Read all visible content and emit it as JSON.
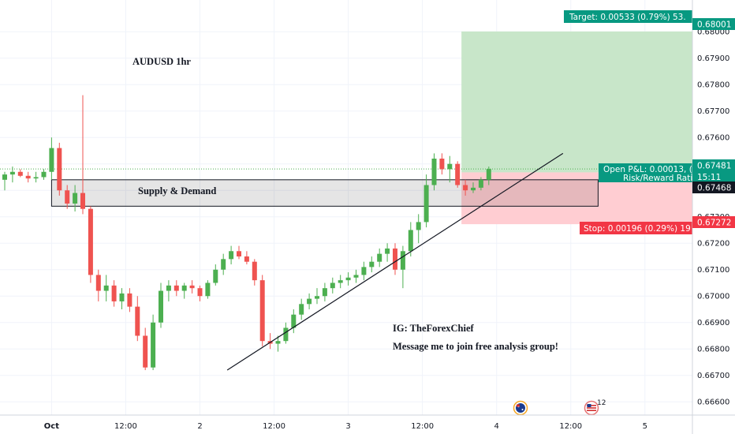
{
  "title": "AUDUSD 1hr",
  "zone_label": "Supply & Demand",
  "annotation": {
    "ig": "IG: TheForexChief",
    "message": "Message me to join free analysis group!"
  },
  "colors": {
    "up": "#26a69a",
    "up_body": "#4caf50",
    "down": "#ef5350",
    "target_zone": "#c8e6c9",
    "stop_zone": "#ffcdd2",
    "target_tag": "#089981",
    "stop_tag": "#f23645"
  },
  "position": {
    "target_label": "Target: 0.00533 (0.79%) 53.",
    "stop_label": "Stop: 0.00196 (0.29%) 19",
    "pnl_label": "Open P&L: 0.00013, (",
    "rr_label": "Risk/Reward Rati",
    "timer": "15:11"
  },
  "price_tags": {
    "target": "0.68001",
    "current": "0.67481",
    "entry": "0.67468",
    "stop": "0.67272"
  },
  "events": [
    {
      "name": "australia-flag-icon",
      "label": ""
    },
    {
      "name": "usa-flag-icon",
      "label": "12"
    }
  ],
  "chart_data": {
    "type": "candlestick",
    "title": "AUDUSD 1hr",
    "y_ticks": [
      "0.68000",
      "0.67900",
      "0.67800",
      "0.67700",
      "0.67600",
      "0.67500",
      "0.67400",
      "0.67300",
      "0.67200",
      "0.67100",
      "0.67000",
      "0.66900",
      "0.66800",
      "0.66700",
      "0.66600"
    ],
    "y_tick_values": [
      0.68,
      0.679,
      0.678,
      0.677,
      0.676,
      0.675,
      0.674,
      0.673,
      0.672,
      0.671,
      0.67,
      0.669,
      0.668,
      0.667,
      0.666
    ],
    "x_ticks": [
      "Oct",
      "12:00",
      "2",
      "12:00",
      "3",
      "12:00",
      "4",
      "12:00",
      "5"
    ],
    "x_tick_index": [
      6,
      15.5,
      25,
      34.5,
      44,
      53.5,
      63,
      72.5,
      82
    ],
    "ylim": [
      0.6655,
      0.6812
    ],
    "candles": [
      [
        0.6744,
        0.6747,
        0.674,
        0.6746
      ],
      [
        0.6746,
        0.6749,
        0.6743,
        0.6747
      ],
      [
        0.6747,
        0.6748,
        0.6745,
        0.67455
      ],
      [
        0.67455,
        0.6747,
        0.6743,
        0.67445
      ],
      [
        0.67445,
        0.6747,
        0.6743,
        0.6745
      ],
      [
        0.6745,
        0.6748,
        0.6744,
        0.6747
      ],
      [
        0.6747,
        0.676,
        0.6744,
        0.6756
      ],
      [
        0.6756,
        0.6758,
        0.6738,
        0.674
      ],
      [
        0.674,
        0.6742,
        0.6733,
        0.6735
      ],
      [
        0.6735,
        0.6742,
        0.6732,
        0.6739
      ],
      [
        0.6739,
        0.6776,
        0.6731,
        0.6733
      ],
      [
        0.6733,
        0.6734,
        0.6705,
        0.6708
      ],
      [
        0.6708,
        0.671,
        0.6698,
        0.6702
      ],
      [
        0.6702,
        0.6708,
        0.6698,
        0.6704
      ],
      [
        0.6704,
        0.6706,
        0.6696,
        0.6698
      ],
      [
        0.6698,
        0.6703,
        0.6695,
        0.6701
      ],
      [
        0.6701,
        0.6703,
        0.6694,
        0.6696
      ],
      [
        0.6696,
        0.67,
        0.6683,
        0.6685
      ],
      [
        0.6685,
        0.6688,
        0.6672,
        0.6673
      ],
      [
        0.6673,
        0.6693,
        0.6672,
        0.669
      ],
      [
        0.669,
        0.6705,
        0.6688,
        0.6702
      ],
      [
        0.6702,
        0.6706,
        0.6698,
        0.6704
      ],
      [
        0.6704,
        0.6706,
        0.67,
        0.6702
      ],
      [
        0.6702,
        0.6705,
        0.6699,
        0.6704
      ],
      [
        0.6704,
        0.6706,
        0.6701,
        0.6703
      ],
      [
        0.6703,
        0.6704,
        0.6698,
        0.67
      ],
      [
        0.67,
        0.6706,
        0.6699,
        0.6705
      ],
      [
        0.6705,
        0.6712,
        0.6704,
        0.671
      ],
      [
        0.671,
        0.6716,
        0.6708,
        0.6714
      ],
      [
        0.6714,
        0.6719,
        0.6712,
        0.6717
      ],
      [
        0.6717,
        0.6719,
        0.6714,
        0.6715
      ],
      [
        0.6715,
        0.6717,
        0.6712,
        0.6713
      ],
      [
        0.6713,
        0.6714,
        0.6704,
        0.6706
      ],
      [
        0.6706,
        0.6708,
        0.6681,
        0.6683
      ],
      [
        0.6683,
        0.6686,
        0.668,
        0.6682
      ],
      [
        0.6682,
        0.6685,
        0.6679,
        0.6683
      ],
      [
        0.6683,
        0.669,
        0.6682,
        0.6688
      ],
      [
        0.6688,
        0.6695,
        0.6686,
        0.6693
      ],
      [
        0.6693,
        0.6699,
        0.6691,
        0.6697
      ],
      [
        0.6697,
        0.6701,
        0.6695,
        0.6699
      ],
      [
        0.6699,
        0.6703,
        0.6697,
        0.67
      ],
      [
        0.67,
        0.6705,
        0.6698,
        0.6703
      ],
      [
        0.6703,
        0.6707,
        0.6701,
        0.6705
      ],
      [
        0.6705,
        0.6708,
        0.6703,
        0.6706
      ],
      [
        0.6706,
        0.6709,
        0.6704,
        0.6707
      ],
      [
        0.6707,
        0.671,
        0.6705,
        0.6708
      ],
      [
        0.6708,
        0.6713,
        0.6706,
        0.6711
      ],
      [
        0.6711,
        0.6715,
        0.6709,
        0.6713
      ],
      [
        0.6713,
        0.6718,
        0.6711,
        0.6716
      ],
      [
        0.6716,
        0.672,
        0.6713,
        0.6718
      ],
      [
        0.6718,
        0.672,
        0.6708,
        0.671
      ],
      [
        0.671,
        0.6719,
        0.6703,
        0.6717
      ],
      [
        0.6717,
        0.6728,
        0.6715,
        0.6725
      ],
      [
        0.6725,
        0.6731,
        0.672,
        0.6728
      ],
      [
        0.6728,
        0.6746,
        0.6726,
        0.6742
      ],
      [
        0.6742,
        0.6754,
        0.674,
        0.6752
      ],
      [
        0.6752,
        0.6754,
        0.6746,
        0.6748
      ],
      [
        0.6748,
        0.6753,
        0.6743,
        0.675
      ],
      [
        0.675,
        0.6751,
        0.6741,
        0.6742
      ],
      [
        0.6742,
        0.6744,
        0.6738,
        0.674
      ],
      [
        0.674,
        0.6743,
        0.6739,
        0.6741
      ],
      [
        0.6741,
        0.6745,
        0.674,
        0.6744
      ],
      [
        0.6744,
        0.6749,
        0.6742,
        0.67481
      ]
    ],
    "zones": {
      "supply_demand": [
        0.6734,
        0.6744
      ],
      "target": [
        0.67468,
        0.68001
      ],
      "stop": [
        0.67272,
        0.67468
      ]
    },
    "trendline": [
      [
        28.5,
        0.6672
      ],
      [
        71.5,
        0.6754
      ]
    ]
  }
}
